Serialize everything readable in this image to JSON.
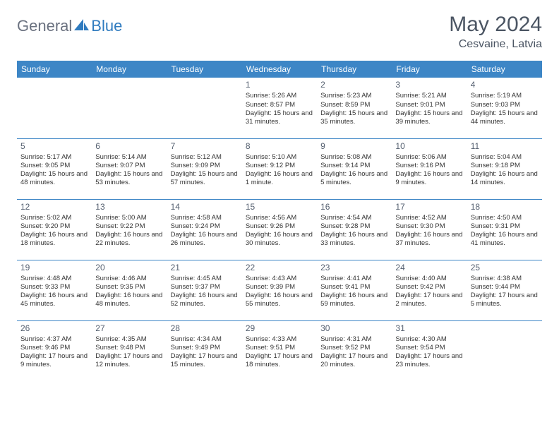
{
  "logo": {
    "general": "General",
    "blue": "Blue"
  },
  "title": "May 2024",
  "location": "Cesvaine, Latvia",
  "colors": {
    "header_bg": "#3d86c6",
    "header_fg": "#ffffff",
    "rule": "#3d86c6",
    "text": "#333333",
    "title_color": "#4b5563",
    "logo_gray": "#6b7280",
    "logo_blue": "#2f7bbf",
    "background": "#ffffff"
  },
  "dow": [
    "Sunday",
    "Monday",
    "Tuesday",
    "Wednesday",
    "Thursday",
    "Friday",
    "Saturday"
  ],
  "weeks": [
    [
      null,
      null,
      null,
      {
        "n": "1",
        "sr": "5:26 AM",
        "ss": "8:57 PM",
        "dl": "15 hours and 31 minutes."
      },
      {
        "n": "2",
        "sr": "5:23 AM",
        "ss": "8:59 PM",
        "dl": "15 hours and 35 minutes."
      },
      {
        "n": "3",
        "sr": "5:21 AM",
        "ss": "9:01 PM",
        "dl": "15 hours and 39 minutes."
      },
      {
        "n": "4",
        "sr": "5:19 AM",
        "ss": "9:03 PM",
        "dl": "15 hours and 44 minutes."
      }
    ],
    [
      {
        "n": "5",
        "sr": "5:17 AM",
        "ss": "9:05 PM",
        "dl": "15 hours and 48 minutes."
      },
      {
        "n": "6",
        "sr": "5:14 AM",
        "ss": "9:07 PM",
        "dl": "15 hours and 53 minutes."
      },
      {
        "n": "7",
        "sr": "5:12 AM",
        "ss": "9:09 PM",
        "dl": "15 hours and 57 minutes."
      },
      {
        "n": "8",
        "sr": "5:10 AM",
        "ss": "9:12 PM",
        "dl": "16 hours and 1 minute."
      },
      {
        "n": "9",
        "sr": "5:08 AM",
        "ss": "9:14 PM",
        "dl": "16 hours and 5 minutes."
      },
      {
        "n": "10",
        "sr": "5:06 AM",
        "ss": "9:16 PM",
        "dl": "16 hours and 9 minutes."
      },
      {
        "n": "11",
        "sr": "5:04 AM",
        "ss": "9:18 PM",
        "dl": "16 hours and 14 minutes."
      }
    ],
    [
      {
        "n": "12",
        "sr": "5:02 AM",
        "ss": "9:20 PM",
        "dl": "16 hours and 18 minutes."
      },
      {
        "n": "13",
        "sr": "5:00 AM",
        "ss": "9:22 PM",
        "dl": "16 hours and 22 minutes."
      },
      {
        "n": "14",
        "sr": "4:58 AM",
        "ss": "9:24 PM",
        "dl": "16 hours and 26 minutes."
      },
      {
        "n": "15",
        "sr": "4:56 AM",
        "ss": "9:26 PM",
        "dl": "16 hours and 30 minutes."
      },
      {
        "n": "16",
        "sr": "4:54 AM",
        "ss": "9:28 PM",
        "dl": "16 hours and 33 minutes."
      },
      {
        "n": "17",
        "sr": "4:52 AM",
        "ss": "9:30 PM",
        "dl": "16 hours and 37 minutes."
      },
      {
        "n": "18",
        "sr": "4:50 AM",
        "ss": "9:31 PM",
        "dl": "16 hours and 41 minutes."
      }
    ],
    [
      {
        "n": "19",
        "sr": "4:48 AM",
        "ss": "9:33 PM",
        "dl": "16 hours and 45 minutes."
      },
      {
        "n": "20",
        "sr": "4:46 AM",
        "ss": "9:35 PM",
        "dl": "16 hours and 48 minutes."
      },
      {
        "n": "21",
        "sr": "4:45 AM",
        "ss": "9:37 PM",
        "dl": "16 hours and 52 minutes."
      },
      {
        "n": "22",
        "sr": "4:43 AM",
        "ss": "9:39 PM",
        "dl": "16 hours and 55 minutes."
      },
      {
        "n": "23",
        "sr": "4:41 AM",
        "ss": "9:41 PM",
        "dl": "16 hours and 59 minutes."
      },
      {
        "n": "24",
        "sr": "4:40 AM",
        "ss": "9:42 PM",
        "dl": "17 hours and 2 minutes."
      },
      {
        "n": "25",
        "sr": "4:38 AM",
        "ss": "9:44 PM",
        "dl": "17 hours and 5 minutes."
      }
    ],
    [
      {
        "n": "26",
        "sr": "4:37 AM",
        "ss": "9:46 PM",
        "dl": "17 hours and 9 minutes."
      },
      {
        "n": "27",
        "sr": "4:35 AM",
        "ss": "9:48 PM",
        "dl": "17 hours and 12 minutes."
      },
      {
        "n": "28",
        "sr": "4:34 AM",
        "ss": "9:49 PM",
        "dl": "17 hours and 15 minutes."
      },
      {
        "n": "29",
        "sr": "4:33 AM",
        "ss": "9:51 PM",
        "dl": "17 hours and 18 minutes."
      },
      {
        "n": "30",
        "sr": "4:31 AM",
        "ss": "9:52 PM",
        "dl": "17 hours and 20 minutes."
      },
      {
        "n": "31",
        "sr": "4:30 AM",
        "ss": "9:54 PM",
        "dl": "17 hours and 23 minutes."
      },
      null
    ]
  ]
}
